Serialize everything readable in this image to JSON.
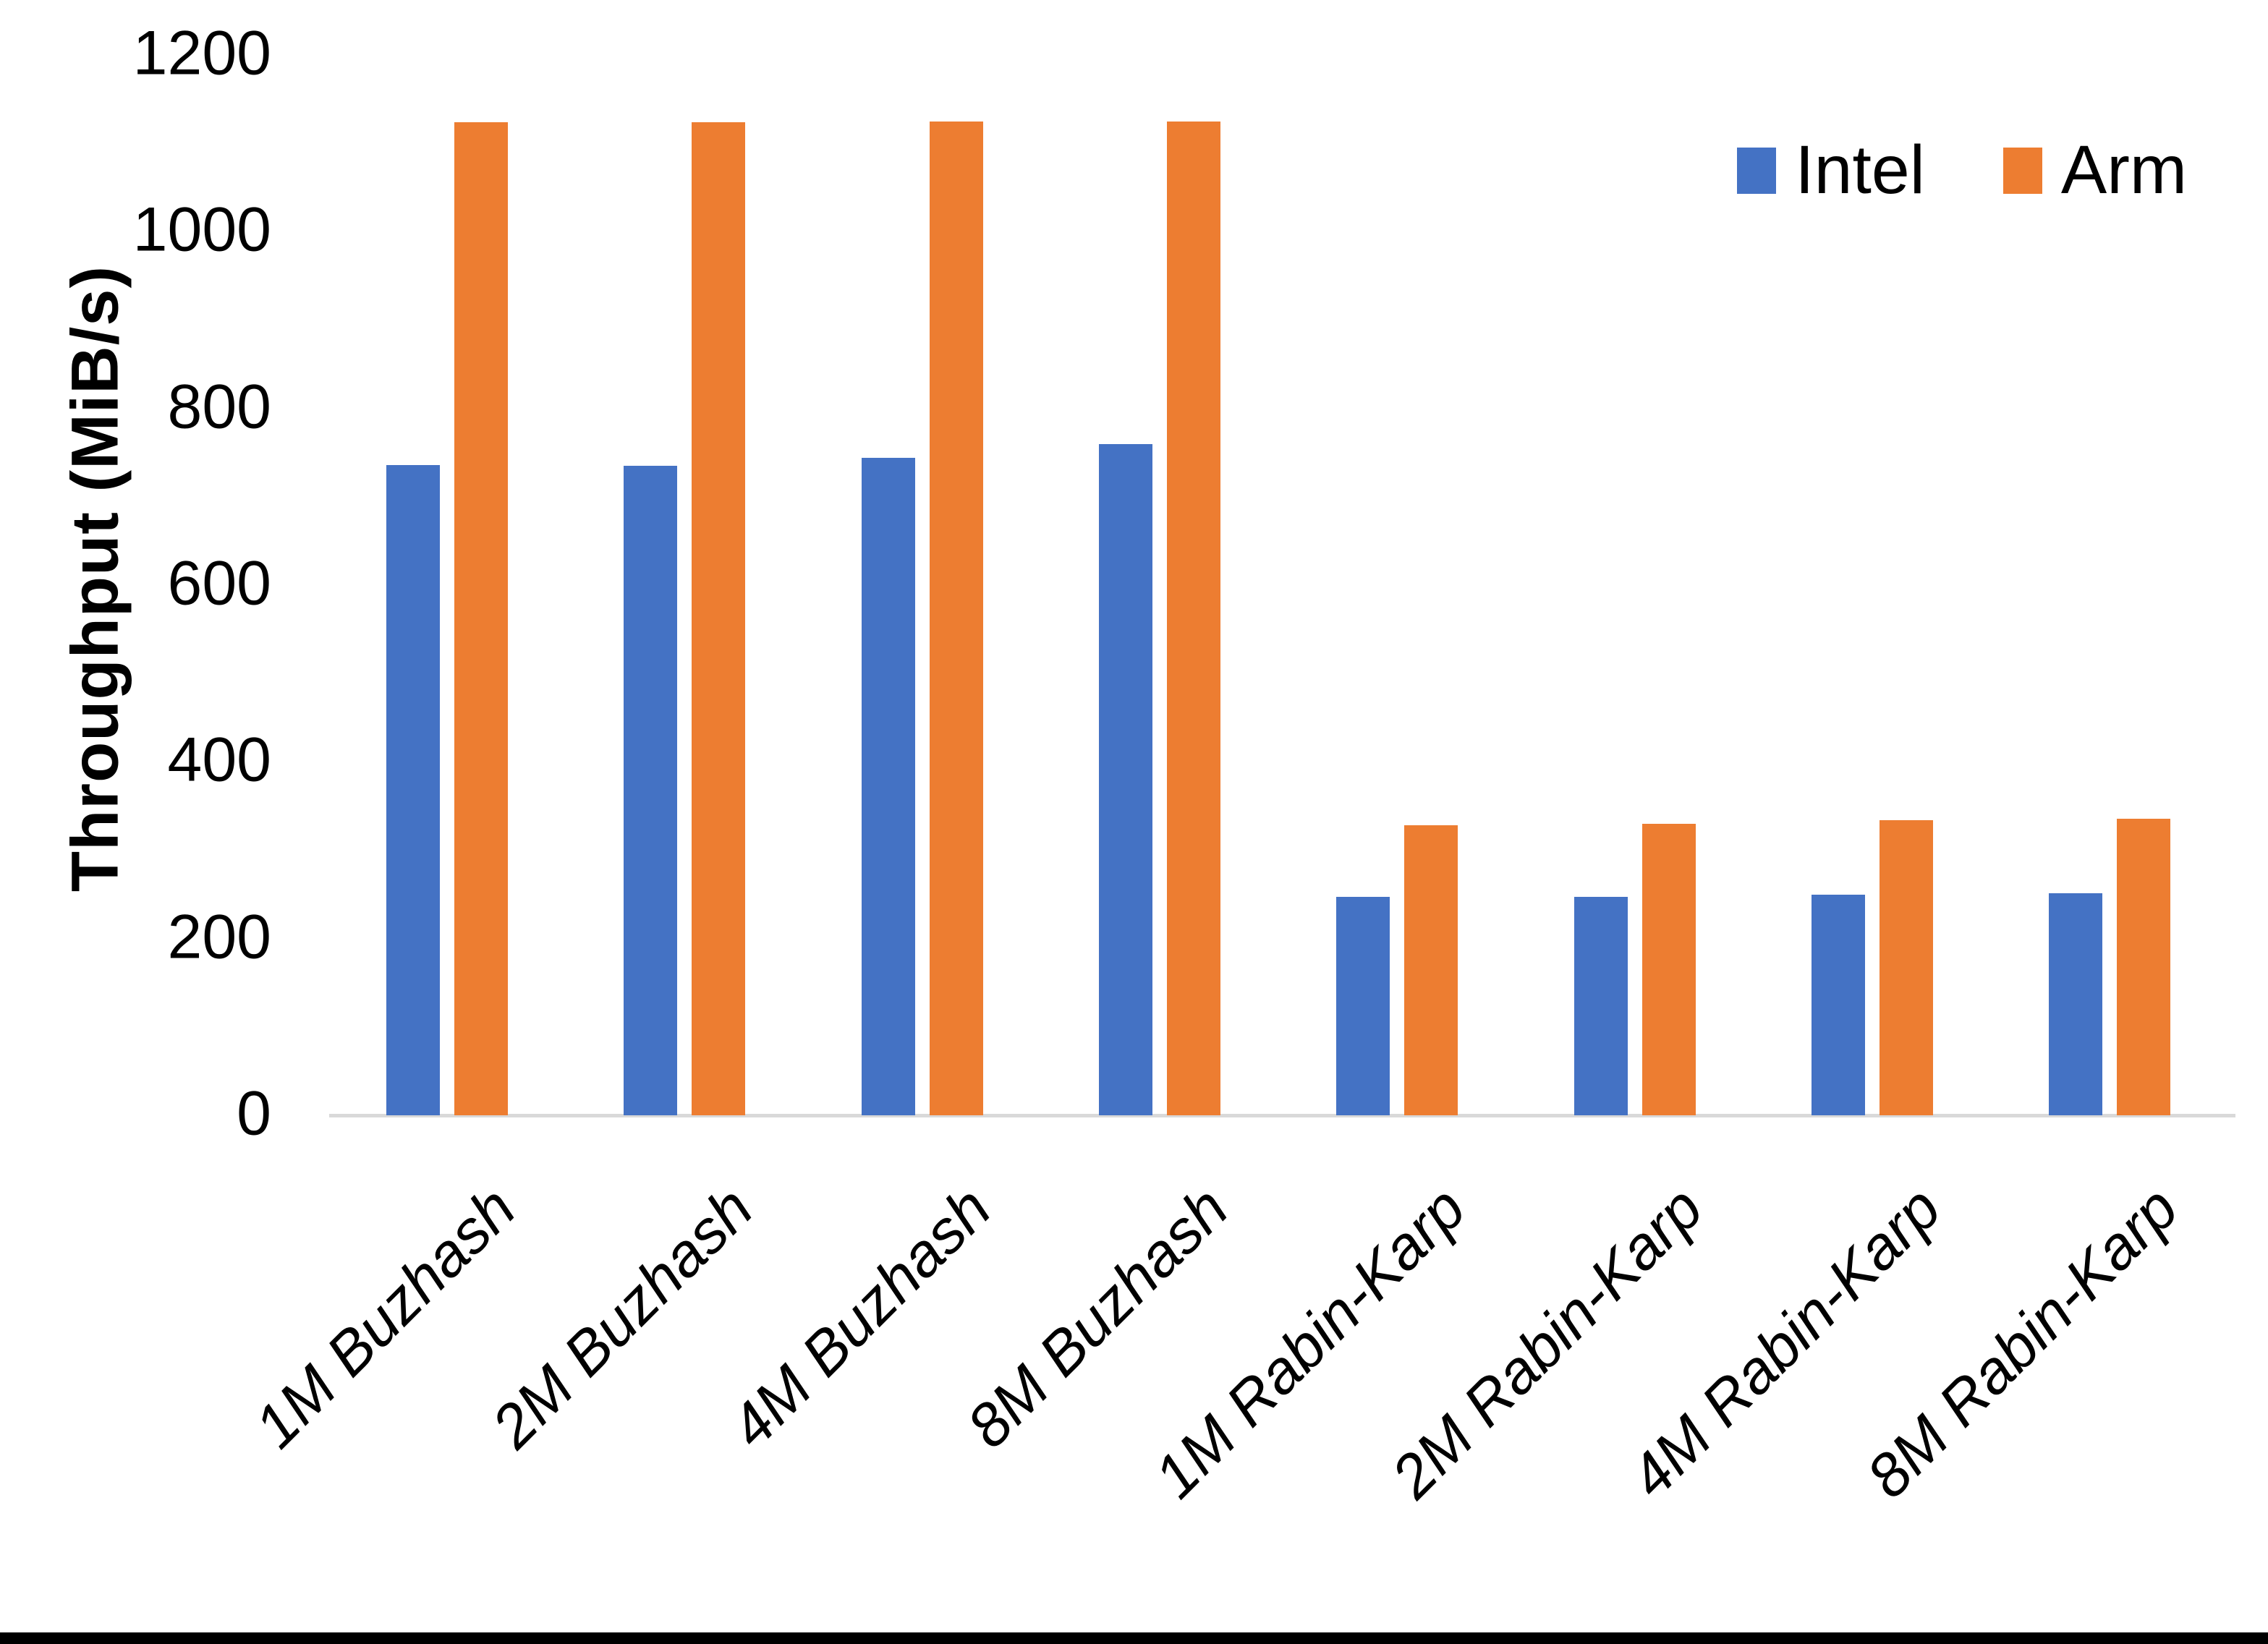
{
  "chart_data": {
    "type": "bar",
    "title": "",
    "ylabel": "Throughput (MiB/s)",
    "xlabel": "",
    "categories": [
      "1M Buzhash",
      "2M Buzhash",
      "4M Buzhash",
      "8M Buzhash",
      "1M Rabin-Karp",
      "2M Rabin-Karp",
      "4M Rabin-Karp",
      "8M Rabin-Karp"
    ],
    "series": [
      {
        "name": "Intel",
        "color": "#4472C4",
        "values": [
          736,
          735,
          744,
          760,
          247,
          247,
          250,
          251
        ]
      },
      {
        "name": "Arm",
        "color": "#ED7D31",
        "values": [
          1124,
          1124,
          1125,
          1125,
          328,
          330,
          334,
          336
        ]
      }
    ],
    "ylim": [
      0,
      1200
    ],
    "yticks": [
      0,
      200,
      400,
      600,
      800,
      1000,
      1200
    ],
    "grid": false,
    "legend_position": "top-right"
  },
  "colors": {
    "axis_line": "#D9D9D9",
    "text": "#000000",
    "background": "#FFFFFF",
    "bottom_border": "#000000"
  }
}
